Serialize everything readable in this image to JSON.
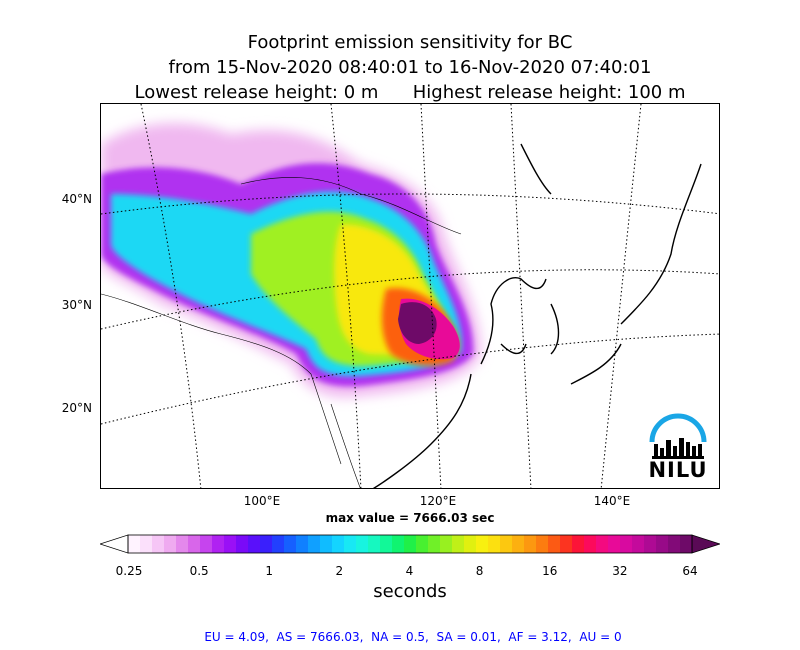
{
  "title": {
    "line1": "Footprint emission sensitivity for BC",
    "line2": "from 15-Nov-2020 08:40:01 to 16-Nov-2020 07:40:01",
    "line3": "Lowest release height: 0 m      Highest release height: 100 m"
  },
  "map": {
    "lat_labels": [
      "40°N",
      "30°N",
      "20°N"
    ],
    "lon_labels": [
      "100°E",
      "120°E",
      "140°E"
    ],
    "max_value": "max value = 7666.03 sec",
    "logo_text": "NILU"
  },
  "colorbar": {
    "ticks": [
      "0.25",
      "0.5",
      "1",
      "2",
      "4",
      "8",
      "16",
      "32",
      "64"
    ],
    "unit": "seconds",
    "colors": [
      "#fff3ff",
      "#fbe0fb",
      "#f6c6f6",
      "#efaaf0",
      "#e488ec",
      "#d866ea",
      "#c644ee",
      "#b022f2",
      "#9a10f6",
      "#7a0af8",
      "#5a10fa",
      "#3a20fc",
      "#2240fe",
      "#1660ff",
      "#1080ff",
      "#10a0ff",
      "#10bcff",
      "#14d4ff",
      "#18e8f4",
      "#18f4e0",
      "#16f8c0",
      "#12f898",
      "#10f470",
      "#20f048",
      "#48f030",
      "#70f028",
      "#98f020",
      "#c0f018",
      "#e0f010",
      "#f8f010",
      "#fce010",
      "#fcc810",
      "#fcb010",
      "#fc9810",
      "#fc7c10",
      "#fc5a14",
      "#fc3420",
      "#fc1438",
      "#fc0a5c",
      "#f40a80",
      "#e80a98",
      "#d80aa0",
      "#c40a9c",
      "#ae0a94",
      "#980a88",
      "#820a78",
      "#6e0a68"
    ]
  },
  "regions_text": "EU = 4.09,  AS = 7666.03,  NA = 0.5,  SA = 0.01,  AF = 3.12,  AU = 0"
}
